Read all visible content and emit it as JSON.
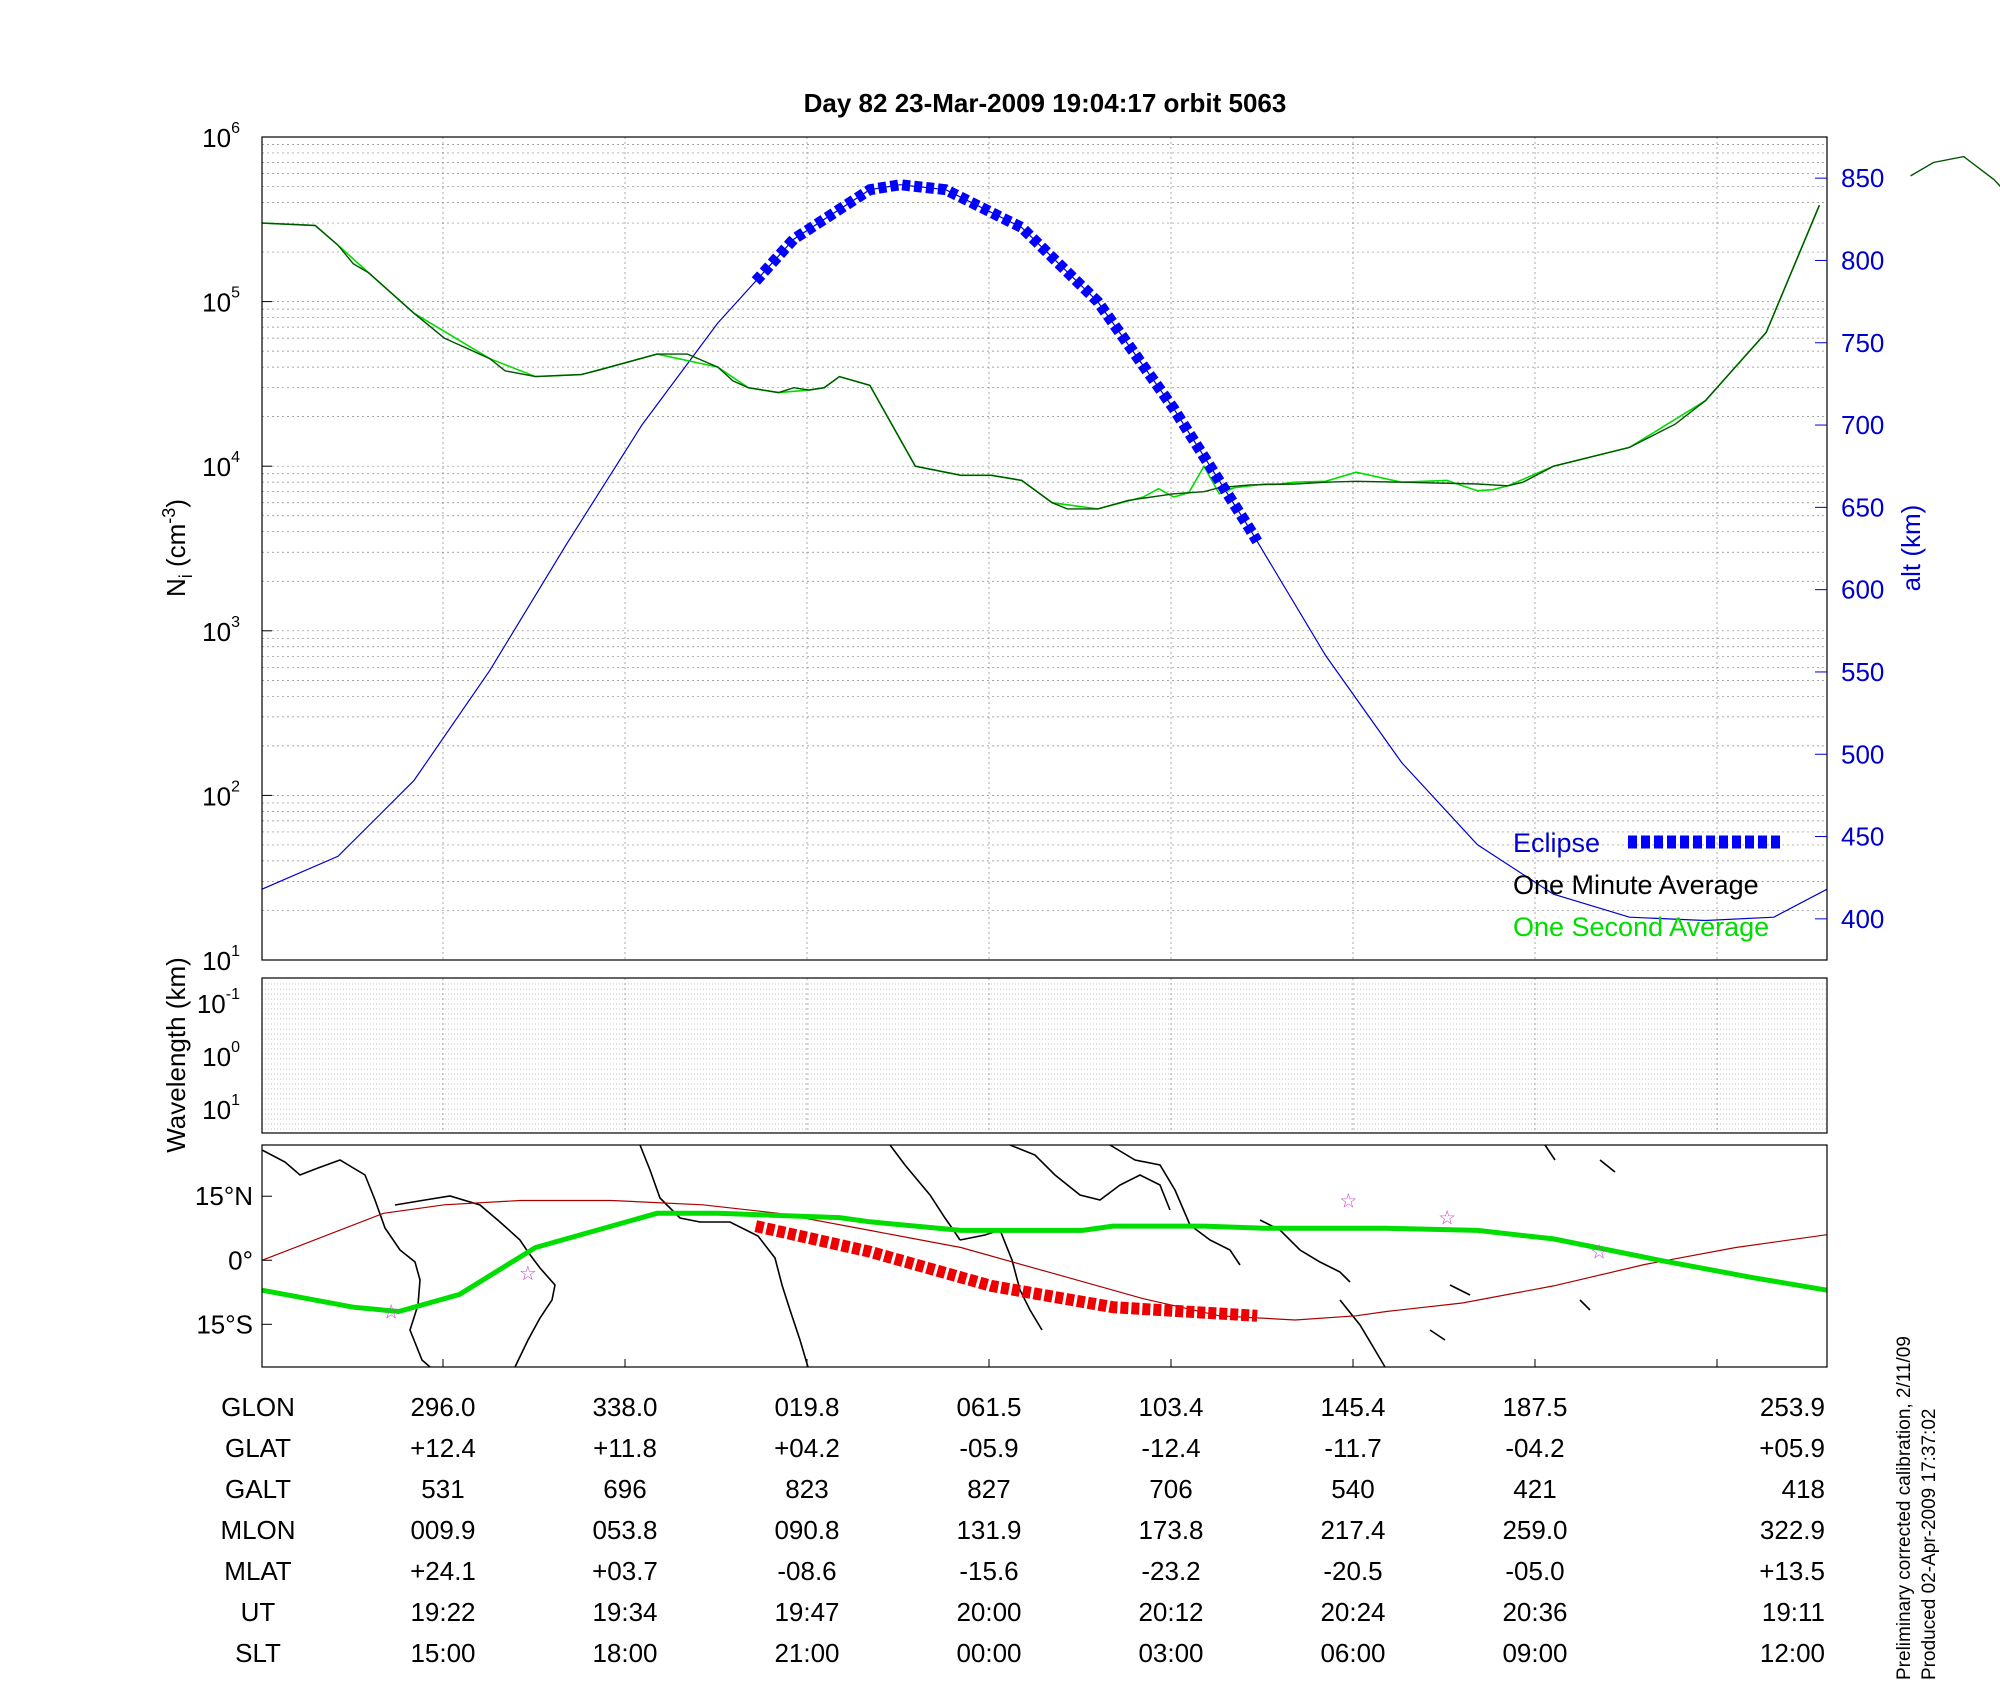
{
  "title": "Day 82  23-Mar-2009 19:04:17   orbit 5063",
  "colors": {
    "axis": "#000000",
    "alt_axis": "#0000cc",
    "one_minute": "#005500",
    "one_second": "#00dd00",
    "eclipse": "#0000ff",
    "map_eclipse": "#ee0000",
    "orbit_track": "#00dd00",
    "dip_equator": "#aa0000",
    "star": "#cc44cc",
    "grid": "#888888"
  },
  "chart_data": [
    {
      "type": "line",
      "panel": "density",
      "ylabel": {
        "base": "N",
        "sub": "i",
        "unit": " (cm",
        "unit_exp": "-3",
        "close": ")"
      },
      "y2label": "alt (km)",
      "y_scale": "log",
      "ylim": [
        10,
        1000000
      ],
      "y_ticks": [
        {
          "base": "10",
          "exp": "1"
        },
        {
          "base": "10",
          "exp": "2"
        },
        {
          "base": "10",
          "exp": "3"
        },
        {
          "base": "10",
          "exp": "4"
        },
        {
          "base": "10",
          "exp": "5"
        },
        {
          "base": "10",
          "exp": "6"
        }
      ],
      "y2lim": [
        375,
        875
      ],
      "y2_ticks": [
        "400",
        "450",
        "500",
        "550",
        "600",
        "650",
        "700",
        "750",
        "800",
        "850"
      ],
      "x_range_minutes": [
        0,
        103
      ],
      "grid": true,
      "legend_position": "bottom-right",
      "legend": [
        "Eclipse",
        "One Minute Average",
        "One Second Average"
      ],
      "series": [
        {
          "name": "One Minute Average",
          "x": [
            0,
            3.5,
            5,
            6,
            7,
            10,
            12,
            15,
            16,
            18,
            21,
            22,
            26,
            28,
            30,
            31,
            32,
            34,
            35,
            36,
            37,
            38,
            40,
            43,
            46,
            48,
            50,
            52,
            53,
            55,
            57,
            60,
            62,
            63,
            65,
            68,
            70,
            72,
            75,
            80,
            82,
            83,
            85,
            90,
            93,
            95,
            99,
            102.5
          ],
          "y": [
            300000,
            290000,
            220000,
            170000,
            150000,
            85000,
            60000,
            45000,
            38000,
            35000,
            36000,
            38000,
            48000,
            48000,
            40000,
            33000,
            30000,
            28000,
            30000,
            29000,
            30000,
            35000,
            31000,
            10000,
            8800,
            8800,
            8200,
            6000,
            5500,
            5500,
            6200,
            6800,
            7000,
            7400,
            7700,
            7800,
            8000,
            8100,
            8000,
            7800,
            7600,
            8000,
            10000,
            13000,
            18000,
            25000,
            65000,
            385000
          ]
        },
        {
          "name": "One Second Average",
          "x": [
            0,
            3.5,
            5,
            7,
            10,
            15,
            18,
            21,
            26,
            30,
            32,
            34,
            36,
            37,
            38,
            40,
            43,
            46,
            48,
            50,
            52,
            55,
            58,
            59,
            60,
            61,
            62,
            63,
            64,
            65,
            66,
            67,
            68,
            70,
            72,
            75,
            78,
            79,
            80,
            81,
            82,
            85,
            90,
            95,
            99,
            102.5
          ],
          "y": [
            300000,
            290000,
            220000,
            150000,
            85000,
            45000,
            35000,
            36000,
            48000,
            40000,
            30000,
            28000,
            29000,
            30000,
            35000,
            31000,
            10000,
            8800,
            8800,
            8200,
            6000,
            5500,
            6500,
            7300,
            6500,
            6900,
            10000,
            6800,
            7400,
            7600,
            7800,
            7800,
            8000,
            8100,
            9200,
            8000,
            8200,
            7600,
            7100,
            7200,
            7600,
            10000,
            13000,
            25000,
            65000,
            385000
          ]
        },
        {
          "name": "One Minute Average (segment 2)",
          "legend": false,
          "x": [
            108.5,
            110,
            112,
            114,
            116.5
          ],
          "y": [
            580000,
            700000,
            760000,
            550000,
            310000
          ]
        },
        {
          "name": "Eclipse",
          "axis": "alt",
          "x_start": 32.5,
          "x_end": 65.5
        },
        {
          "name": "Altitude",
          "legend": false,
          "axis": "alt",
          "x": [
            0,
            5,
            10,
            15,
            20,
            25,
            30,
            35,
            40,
            42,
            45,
            50,
            55,
            60,
            65,
            70,
            75,
            80,
            85,
            90,
            95,
            99.5,
            103
          ],
          "y": [
            418,
            438,
            484,
            551,
            627,
            700,
            762,
            813,
            843,
            846,
            843,
            820,
            775,
            710,
            637,
            560,
            495,
            445,
            415,
            401,
            399,
            401,
            418
          ]
        }
      ]
    },
    {
      "type": "heatmap",
      "panel": "wavelength",
      "ylabel": "Wavelength (km)",
      "y_ticks": [
        {
          "base": "10",
          "exp": "-1"
        },
        {
          "base": "10",
          "exp": "0"
        },
        {
          "base": "10",
          "exp": "1"
        }
      ],
      "grid": true,
      "values": []
    },
    {
      "type": "line",
      "panel": "map",
      "y_ticks": [
        "15°N",
        "0°",
        "15°S"
      ],
      "ylim": [
        -25,
        27
      ],
      "x_range_minutes": [
        0,
        103
      ],
      "orbit_track": {
        "x": [
          0,
          6,
          9,
          13,
          18,
          26,
          30,
          38,
          40,
          46,
          48,
          54,
          56,
          62,
          66,
          72,
          74,
          80,
          85,
          92,
          98,
          103
        ],
        "y": [
          -7,
          -11,
          -12,
          -8,
          3,
          11,
          11,
          10,
          9,
          7,
          7,
          7,
          8,
          8,
          7.5,
          7.5,
          7.5,
          7,
          5,
          0,
          -4,
          -7
        ]
      },
      "dip_equator": {
        "x": [
          0,
          8,
          12,
          17,
          23,
          29,
          34,
          40,
          46,
          52,
          58,
          63,
          68,
          72,
          74,
          79,
          85,
          91,
          97,
          103
        ],
        "y": [
          0,
          11,
          13,
          14,
          14,
          13,
          11,
          7,
          3,
          -3,
          -9,
          -13,
          -14,
          -13,
          -12,
          -10,
          -6,
          -1,
          3,
          6
        ]
      },
      "eclipse_segment": {
        "x": [
          32.5,
          40,
          48,
          56,
          65.5
        ],
        "y": [
          8,
          2,
          -6,
          -11,
          -13
        ]
      },
      "stars": {
        "x": [
          8.5,
          17.5,
          71.5,
          78,
          88
        ],
        "y": [
          -12,
          -3,
          14,
          10,
          2
        ]
      }
    }
  ],
  "table": {
    "rows": [
      {
        "label": "GLON",
        "values": [
          "296.0",
          "338.0",
          "019.8",
          "061.5",
          "103.4",
          "145.4",
          "187.5",
          "253.9"
        ]
      },
      {
        "label": "GLAT",
        "values": [
          "+12.4",
          "+11.8",
          "+04.2",
          "-05.9",
          "-12.4",
          "-11.7",
          "-04.2",
          "+05.9"
        ]
      },
      {
        "label": "GALT",
        "values": [
          "531",
          "696",
          "823",
          "827",
          "706",
          "540",
          "421",
          "418"
        ]
      },
      {
        "label": "MLON",
        "values": [
          "009.9",
          "053.8",
          "090.8",
          "131.9",
          "173.8",
          "217.4",
          "259.0",
          "322.9"
        ]
      },
      {
        "label": "MLAT",
        "values": [
          "+24.1",
          "+03.7",
          "-08.6",
          "-15.6",
          "-23.2",
          "-20.5",
          "-05.0",
          "+13.5"
        ]
      },
      {
        "label": "UT",
        "values": [
          "19:22",
          "19:34",
          "19:47",
          "20:00",
          "20:12",
          "20:24",
          "20:36",
          "19:11"
        ]
      },
      {
        "label": "SLT",
        "values": [
          "15:00",
          "18:00",
          "21:00",
          "00:00",
          "03:00",
          "06:00",
          "09:00",
          "12:00"
        ]
      }
    ]
  },
  "footer": {
    "line1": "Preliminary corrected calibration, 2/11/09",
    "line2": "Produced 02-Apr-2009 17:37:02"
  }
}
